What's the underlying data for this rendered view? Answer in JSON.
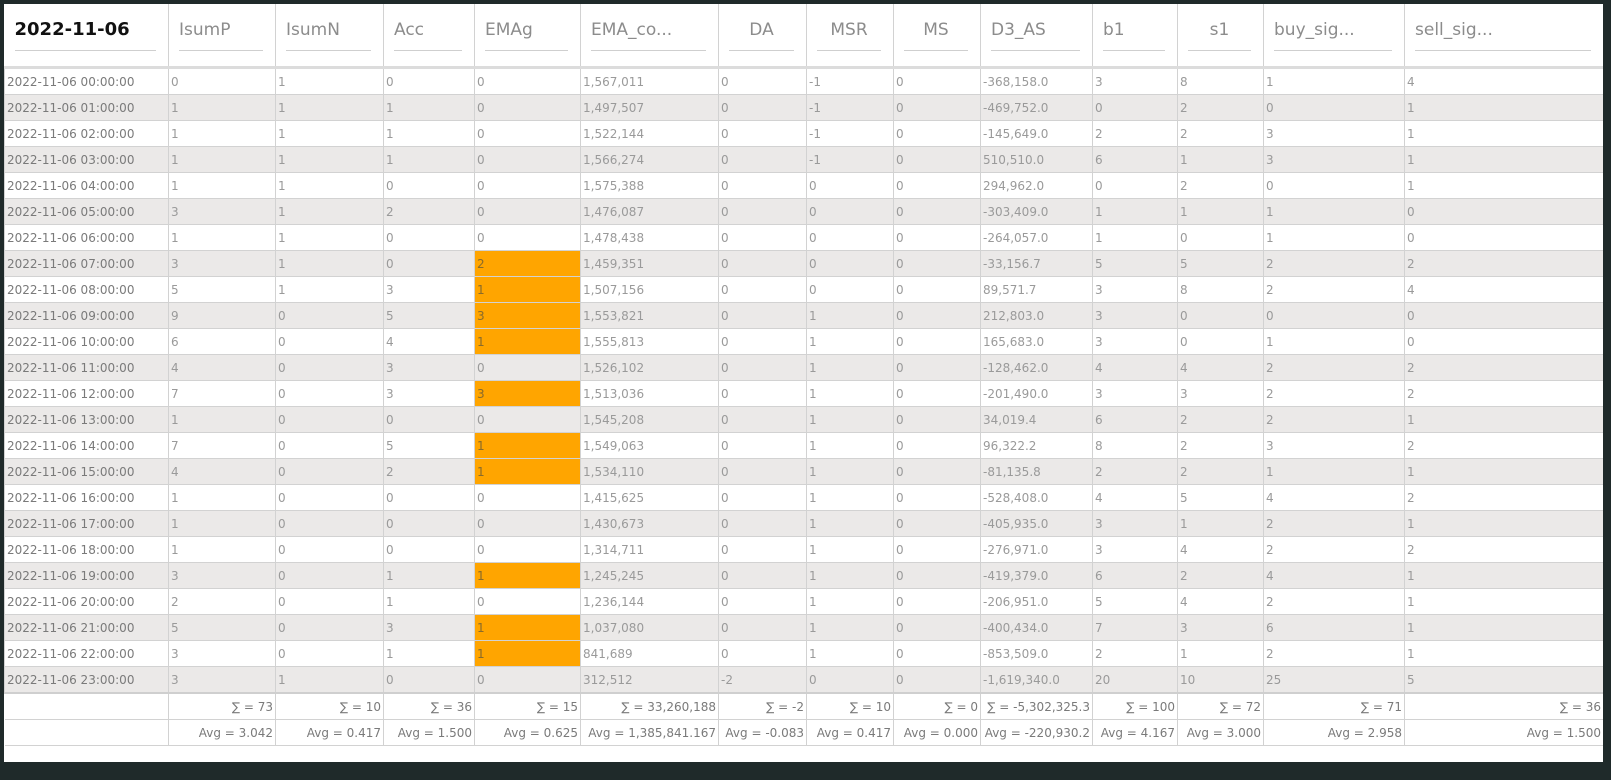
{
  "header": {
    "title": "2022-11-06",
    "columns": [
      "IsumP",
      "IsumN",
      "Acc",
      "EMAg",
      "EMA_co...",
      "DA",
      "MSR",
      "MS",
      "D3_AS",
      "b1",
      "s1",
      "buy_sig...",
      "sell_sig..."
    ]
  },
  "rows": [
    {
      "ts": "2022-11-06 00:00:00",
      "v": [
        "0",
        "1",
        "0",
        "0",
        "1,567,011",
        "0",
        "-1",
        "0",
        "-368,158.0",
        "3",
        "8",
        "1",
        "4"
      ]
    },
    {
      "ts": "2022-11-06 01:00:00",
      "v": [
        "1",
        "1",
        "1",
        "0",
        "1,497,507",
        "0",
        "-1",
        "0",
        "-469,752.0",
        "0",
        "2",
        "0",
        "1"
      ]
    },
    {
      "ts": "2022-11-06 02:00:00",
      "v": [
        "1",
        "1",
        "1",
        "0",
        "1,522,144",
        "0",
        "-1",
        "0",
        "-145,649.0",
        "2",
        "2",
        "3",
        "1"
      ]
    },
    {
      "ts": "2022-11-06 03:00:00",
      "v": [
        "1",
        "1",
        "1",
        "0",
        "1,566,274",
        "0",
        "-1",
        "0",
        "510,510.0",
        "6",
        "1",
        "3",
        "1"
      ]
    },
    {
      "ts": "2022-11-06 04:00:00",
      "v": [
        "1",
        "1",
        "0",
        "0",
        "1,575,388",
        "0",
        "0",
        "0",
        "294,962.0",
        "0",
        "2",
        "0",
        "1"
      ]
    },
    {
      "ts": "2022-11-06 05:00:00",
      "v": [
        "3",
        "1",
        "2",
        "0",
        "1,476,087",
        "0",
        "0",
        "0",
        "-303,409.0",
        "1",
        "1",
        "1",
        "0"
      ]
    },
    {
      "ts": "2022-11-06 06:00:00",
      "v": [
        "1",
        "1",
        "0",
        "0",
        "1,478,438",
        "0",
        "0",
        "0",
        "-264,057.0",
        "1",
        "0",
        "1",
        "0"
      ]
    },
    {
      "ts": "2022-11-06 07:00:00",
      "v": [
        "3",
        "1",
        "0",
        "2",
        "1,459,351",
        "0",
        "0",
        "0",
        "-33,156.7",
        "5",
        "5",
        "2",
        "2"
      ],
      "hl": true
    },
    {
      "ts": "2022-11-06 08:00:00",
      "v": [
        "5",
        "1",
        "3",
        "1",
        "1,507,156",
        "0",
        "0",
        "0",
        "89,571.7",
        "3",
        "8",
        "2",
        "4"
      ],
      "hl": true
    },
    {
      "ts": "2022-11-06 09:00:00",
      "v": [
        "9",
        "0",
        "5",
        "3",
        "1,553,821",
        "0",
        "1",
        "0",
        "212,803.0",
        "3",
        "0",
        "0",
        "0"
      ],
      "hl": true
    },
    {
      "ts": "2022-11-06 10:00:00",
      "v": [
        "6",
        "0",
        "4",
        "1",
        "1,555,813",
        "0",
        "1",
        "0",
        "165,683.0",
        "3",
        "0",
        "1",
        "0"
      ],
      "hl": true
    },
    {
      "ts": "2022-11-06 11:00:00",
      "v": [
        "4",
        "0",
        "3",
        "0",
        "1,526,102",
        "0",
        "1",
        "0",
        "-128,462.0",
        "4",
        "4",
        "2",
        "2"
      ]
    },
    {
      "ts": "2022-11-06 12:00:00",
      "v": [
        "7",
        "0",
        "3",
        "3",
        "1,513,036",
        "0",
        "1",
        "0",
        "-201,490.0",
        "3",
        "3",
        "2",
        "2"
      ],
      "hl": true
    },
    {
      "ts": "2022-11-06 13:00:00",
      "v": [
        "1",
        "0",
        "0",
        "0",
        "1,545,208",
        "0",
        "1",
        "0",
        "34,019.4",
        "6",
        "2",
        "2",
        "1"
      ]
    },
    {
      "ts": "2022-11-06 14:00:00",
      "v": [
        "7",
        "0",
        "5",
        "1",
        "1,549,063",
        "0",
        "1",
        "0",
        "96,322.2",
        "8",
        "2",
        "3",
        "2"
      ],
      "hl": true
    },
    {
      "ts": "2022-11-06 15:00:00",
      "v": [
        "4",
        "0",
        "2",
        "1",
        "1,534,110",
        "0",
        "1",
        "0",
        "-81,135.8",
        "2",
        "2",
        "1",
        "1"
      ],
      "hl": true
    },
    {
      "ts": "2022-11-06 16:00:00",
      "v": [
        "1",
        "0",
        "0",
        "0",
        "1,415,625",
        "0",
        "1",
        "0",
        "-528,408.0",
        "4",
        "5",
        "4",
        "2"
      ]
    },
    {
      "ts": "2022-11-06 17:00:00",
      "v": [
        "1",
        "0",
        "0",
        "0",
        "1,430,673",
        "0",
        "1",
        "0",
        "-405,935.0",
        "3",
        "1",
        "2",
        "1"
      ]
    },
    {
      "ts": "2022-11-06 18:00:00",
      "v": [
        "1",
        "0",
        "0",
        "0",
        "1,314,711",
        "0",
        "1",
        "0",
        "-276,971.0",
        "3",
        "4",
        "2",
        "2"
      ]
    },
    {
      "ts": "2022-11-06 19:00:00",
      "v": [
        "3",
        "0",
        "1",
        "1",
        "1,245,245",
        "0",
        "1",
        "0",
        "-419,379.0",
        "6",
        "2",
        "4",
        "1"
      ],
      "hl": true
    },
    {
      "ts": "2022-11-06 20:00:00",
      "v": [
        "2",
        "0",
        "1",
        "0",
        "1,236,144",
        "0",
        "1",
        "0",
        "-206,951.0",
        "5",
        "4",
        "2",
        "1"
      ]
    },
    {
      "ts": "2022-11-06 21:00:00",
      "v": [
        "5",
        "0",
        "3",
        "1",
        "1,037,080",
        "0",
        "1",
        "0",
        "-400,434.0",
        "7",
        "3",
        "6",
        "1"
      ],
      "hl": true
    },
    {
      "ts": "2022-11-06 22:00:00",
      "v": [
        "3",
        "0",
        "1",
        "1",
        "841,689",
        "0",
        "1",
        "0",
        "-853,509.0",
        "2",
        "1",
        "2",
        "1"
      ],
      "hl": true
    },
    {
      "ts": "2022-11-06 23:00:00",
      "v": [
        "3",
        "1",
        "0",
        "0",
        "312,512",
        "-2",
        "0",
        "0",
        "-1,619,340.0",
        "20",
        "10",
        "25",
        "5"
      ]
    }
  ],
  "highlight_color": "#ffa500",
  "footer": {
    "sums": [
      "∑ = 73",
      "∑ = 10",
      "∑ = 36",
      "∑ = 15",
      "∑ = 33,260,188",
      "∑ = -2",
      "∑ = 10",
      "∑ = 0",
      "∑ = -5,302,325.3",
      "∑ = 100",
      "∑ = 72",
      "∑ = 71",
      "∑ = 36"
    ],
    "avgs": [
      "Avg = 3.042",
      "Avg = 0.417",
      "Avg = 1.500",
      "Avg = 0.625",
      "Avg = 1,385,841.167",
      "Avg = -0.083",
      "Avg = 0.417",
      "Avg = 0.000",
      "Avg = -220,930.2",
      "Avg = 4.167",
      "Avg = 3.000",
      "Avg = 2.958",
      "Avg = 1.500"
    ]
  }
}
